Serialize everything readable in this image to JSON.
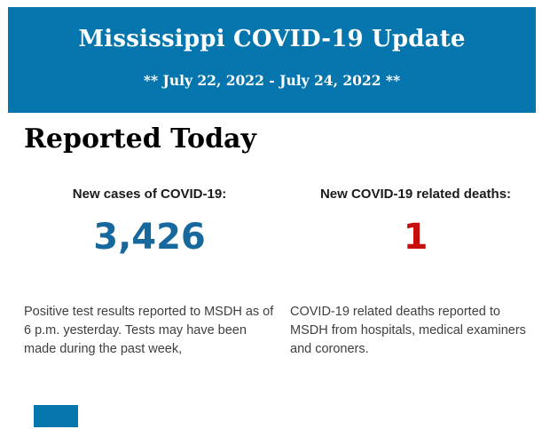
{
  "header": {
    "title": "Mississippi COVID-19 Update",
    "date_range": "** July 22, 2022 - July 24, 2022 **",
    "background_color": "#0475ad",
    "text_color": "#ffffff"
  },
  "section": {
    "title": "Reported Today"
  },
  "stats": {
    "0": {
      "label": "New cases of COVID-19:",
      "value": "3,426",
      "value_color": "#17689c",
      "description": "Positive test results reported to MSDH as of 6 p.m. yesterday. Tests may have been made during the past week,"
    },
    "1": {
      "label": "New COVID-19 related deaths:",
      "value": "1",
      "value_color": "#c80d0d",
      "description": "COVID-19 related deaths reported to MSDH from hospitals, medical examiners and coroners."
    }
  },
  "footer": {
    "next_section_color": "#0475ad"
  }
}
